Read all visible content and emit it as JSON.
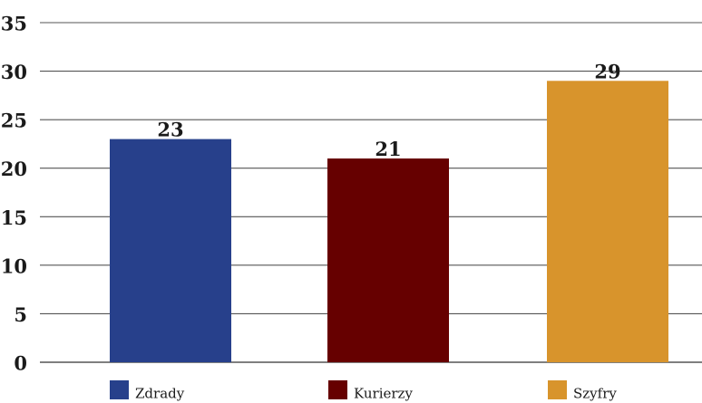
{
  "chart_data": {
    "type": "bar",
    "title": "",
    "xlabel": "",
    "ylabel": "",
    "categories": [
      "Zdrady",
      "Kurierzy",
      "Szyfry"
    ],
    "values": [
      23,
      21,
      29
    ],
    "colors": [
      "#27408b",
      "#660000",
      "#d8942c"
    ],
    "ylim": [
      0,
      35
    ],
    "yticks": [
      0,
      5,
      10,
      15,
      20,
      25,
      30,
      35
    ],
    "grid": true,
    "legend": "bottom",
    "data_labels": true
  }
}
